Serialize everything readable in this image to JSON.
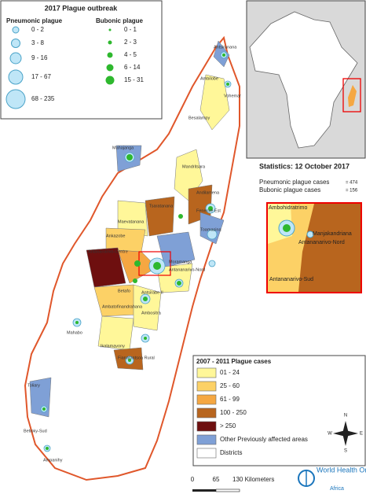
{
  "legend_outbreak": {
    "title": "2017 Plague outbreak",
    "pneumonic": {
      "title": "Pneumonic plague",
      "color": "#bfe6f7",
      "classes": [
        "0 - 2",
        "3 - 8",
        "9 - 16",
        "17 - 67",
        "68 - 235"
      ]
    },
    "bubonic": {
      "title": "Bubonic plague",
      "color": "#2eb82e",
      "classes": [
        "0 - 1",
        "2 - 3",
        "4 - 5",
        "6 - 14",
        "15 - 31"
      ]
    }
  },
  "statistics": {
    "title": "Statistics: 12 October 2017",
    "rows": [
      {
        "label": "Pneumonic plague cases",
        "value": "= 474"
      },
      {
        "label": "Bubonic plague cases",
        "value": "= 156"
      }
    ]
  },
  "inset_labels": [
    "Ambohidratrimo",
    "Manjakandriana",
    "Antananarivo-Nord",
    "Antananarivo-Sud"
  ],
  "district_labels": [
    "Antsiranana",
    "Ambilobe",
    "Vohemar",
    "Besalampy",
    "Mahajanga",
    "Mandritsara",
    "Andilamena",
    "Tsaratanana",
    "Maevatanana",
    "Fenerive Est",
    "Toamasina",
    "Ankazobe",
    "Antananarivo-Centre",
    "Moramanga",
    "Antananarivo-Nord",
    "Betafo",
    "Antsirabe II",
    "Ambatofinandrahana",
    "Ambositra",
    "Mahabo",
    "Ikalamavony",
    "Fianarantsoa Rural",
    "Toliary",
    "Betioky-Sud",
    "Ampanihy"
  ],
  "legend_history": {
    "title": "2007 - 2011 Plague cases",
    "classes": [
      {
        "label": "01 - 24",
        "color": "#fff799"
      },
      {
        "label": "25 - 60",
        "color": "#fcd166"
      },
      {
        "label": "61 - 99",
        "color": "#f5a742"
      },
      {
        "label": "100 - 250",
        "color": "#b8651e"
      },
      {
        "label": "> 250",
        "color": "#6e0f0f"
      },
      {
        "label": "Other Previously affected areas",
        "color": "#7fa0d6"
      },
      {
        "label": "Districts",
        "color": "#ffffff"
      }
    ]
  },
  "compass": [
    "N",
    "E",
    "S",
    "W"
  ],
  "scale": [
    "0",
    "65",
    "130 Kilometers"
  ],
  "logo": {
    "name": "World Health Organization",
    "region": "Africa"
  }
}
